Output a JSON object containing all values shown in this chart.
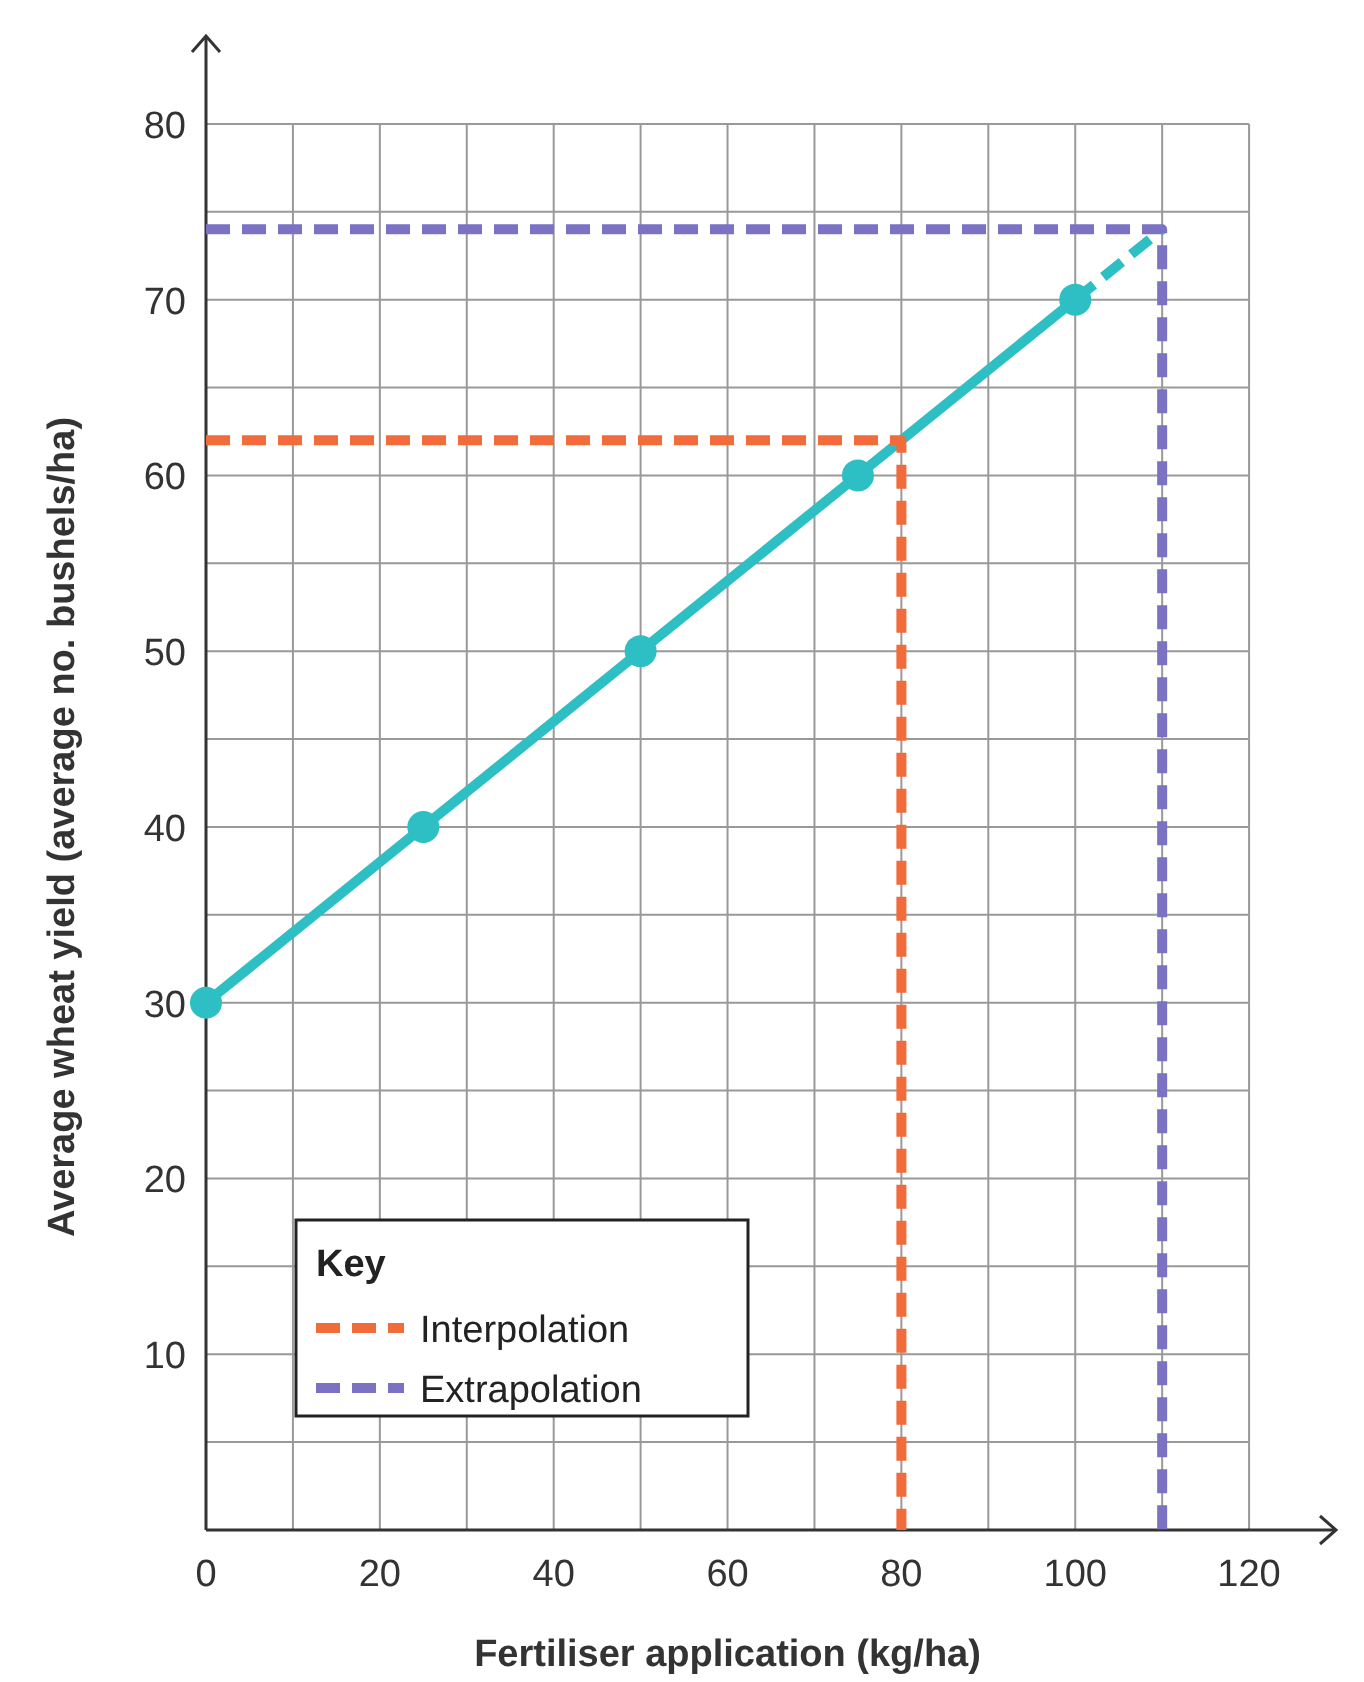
{
  "chart_data": {
    "type": "line",
    "xlabel": "Fertiliser application (kg/ha)",
    "ylabel": "Average wheat yield (average no. bushels/ha)",
    "xlim": [
      0,
      130
    ],
    "ylim": [
      0,
      85
    ],
    "xticks": [
      0,
      {
        "value": 10,
        "label": null
      },
      20,
      {
        "value": 30,
        "label": null
      },
      40,
      {
        "value": 50,
        "label": null
      },
      60,
      {
        "value": 70,
        "label": null
      },
      80,
      {
        "value": 90,
        "label": null
      },
      100,
      {
        "value": 110,
        "label": null
      },
      120
    ],
    "yticks": [
      {
        "value": 0,
        "label": null
      },
      {
        "value": 5,
        "label": null
      },
      10,
      {
        "value": 15,
        "label": null
      },
      20,
      {
        "value": 25,
        "label": null
      },
      30,
      {
        "value": 35,
        "label": null
      },
      40,
      {
        "value": 45,
        "label": null
      },
      50,
      {
        "value": 55,
        "label": null
      },
      60,
      {
        "value": 65,
        "label": null
      },
      70,
      {
        "value": 75,
        "label": null
      },
      80
    ],
    "grid": true,
    "legend": "bottom left",
    "legend_title": "Key",
    "series": [
      {
        "color": "#2ebfc4",
        "x": [
          0,
          25,
          50,
          75,
          100
        ],
        "values": [
          30,
          40,
          50,
          60,
          70
        ],
        "marker": "circle",
        "line_style": "solid"
      },
      {
        "color": "#2ebfc4",
        "x": [
          100,
          110
        ],
        "values": [
          70,
          74
        ],
        "marker": "none",
        "line_style": "dashed"
      },
      {
        "name": "Interpolation",
        "color": "#f26b3a",
        "x": [
          0,
          80,
          80
        ],
        "values": [
          62,
          62,
          0
        ],
        "marker": "none",
        "line_style": "dashed"
      },
      {
        "name": "Extrapolation",
        "color": "#7b72c4",
        "x": [
          0,
          110,
          110
        ],
        "values": [
          74,
          74,
          0
        ],
        "marker": "none",
        "line_style": "dashed"
      }
    ]
  }
}
